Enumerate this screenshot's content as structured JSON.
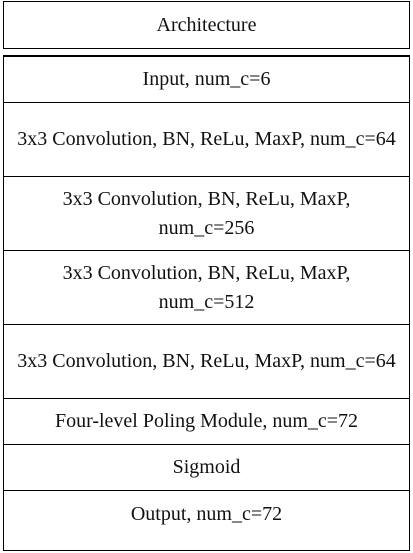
{
  "table": {
    "header": "Architecture",
    "rows": [
      "Input, num_c=6",
      "3x3 Convolution, BN, ReLu, MaxP, num_c=64",
      "3x3 Convolution, BN, ReLu, MaxP, num_c=256",
      "3x3 Convolution, BN, ReLu, MaxP, num_c=512",
      "3x3 Convolution, BN, ReLu, MaxP, num_c=64",
      "Four-level Poling Module, num_c=72",
      "Sigmoid",
      "Output, num_c=72"
    ]
  }
}
